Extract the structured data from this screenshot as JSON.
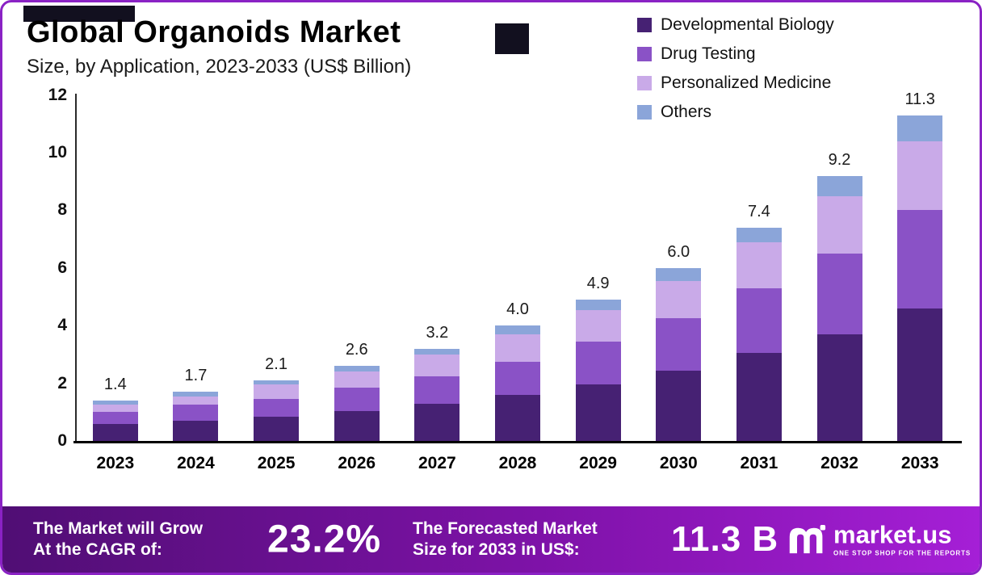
{
  "page": {
    "title": "Global Organoids Market",
    "subtitle": "Size, by Application, 2023-2033 (US$ Billion)"
  },
  "colors": {
    "border": "#8a22c4",
    "developmental_biology": "#462173",
    "drug_testing": "#8a52c6",
    "personalized_medicine": "#c9aae8",
    "others": "#8ba5d9",
    "footer_gradient_left": "#500e74",
    "footer_gradient_right": "#a51fd6"
  },
  "chart_data": {
    "type": "bar",
    "stacked": true,
    "title": "Global Organoids Market",
    "subtitle": "Size, by Application, 2023-2033 (US$ Billion)",
    "xlabel": "",
    "ylabel": "US$ Billion",
    "ylim": [
      0,
      12
    ],
    "yticks": [
      0,
      2,
      4,
      6,
      8,
      10,
      12
    ],
    "grid": false,
    "legend_position": "top-right",
    "categories": [
      "2023",
      "2024",
      "2025",
      "2026",
      "2027",
      "2028",
      "2029",
      "2030",
      "2031",
      "2032",
      "2033"
    ],
    "series": [
      {
        "name": "Developmental Biology",
        "color": "#462173",
        "values": [
          0.6,
          0.7,
          0.85,
          1.05,
          1.3,
          1.6,
          1.95,
          2.45,
          3.05,
          3.7,
          4.6
        ]
      },
      {
        "name": "Drug Testing",
        "color": "#8a52c6",
        "values": [
          0.4,
          0.55,
          0.6,
          0.8,
          0.95,
          1.15,
          1.5,
          1.8,
          2.25,
          2.8,
          3.4
        ]
      },
      {
        "name": "Personalized Medicine",
        "color": "#c9aae8",
        "values": [
          0.25,
          0.3,
          0.5,
          0.55,
          0.75,
          0.95,
          1.1,
          1.3,
          1.6,
          2.0,
          2.4
        ]
      },
      {
        "name": "Others",
        "color": "#8ba5d9",
        "values": [
          0.15,
          0.15,
          0.15,
          0.2,
          0.2,
          0.3,
          0.35,
          0.45,
          0.5,
          0.7,
          0.9
        ]
      }
    ],
    "totals": [
      "1.4",
      "1.7",
      "2.1",
      "2.6",
      "3.2",
      "4.0",
      "4.9",
      "6.0",
      "7.4",
      "9.2",
      "11.3"
    ]
  },
  "footer": {
    "cagr_label_line1": "The Market will Grow",
    "cagr_label_line2": "At the CAGR of:",
    "cagr_value": "23.2%",
    "forecast_label_line1": "The Forecasted Market",
    "forecast_label_line2": "Size for 2033 in US$:",
    "forecast_value": "11.3 B",
    "brand": "market.us",
    "brand_tagline": "ONE STOP SHOP FOR THE REPORTS"
  }
}
